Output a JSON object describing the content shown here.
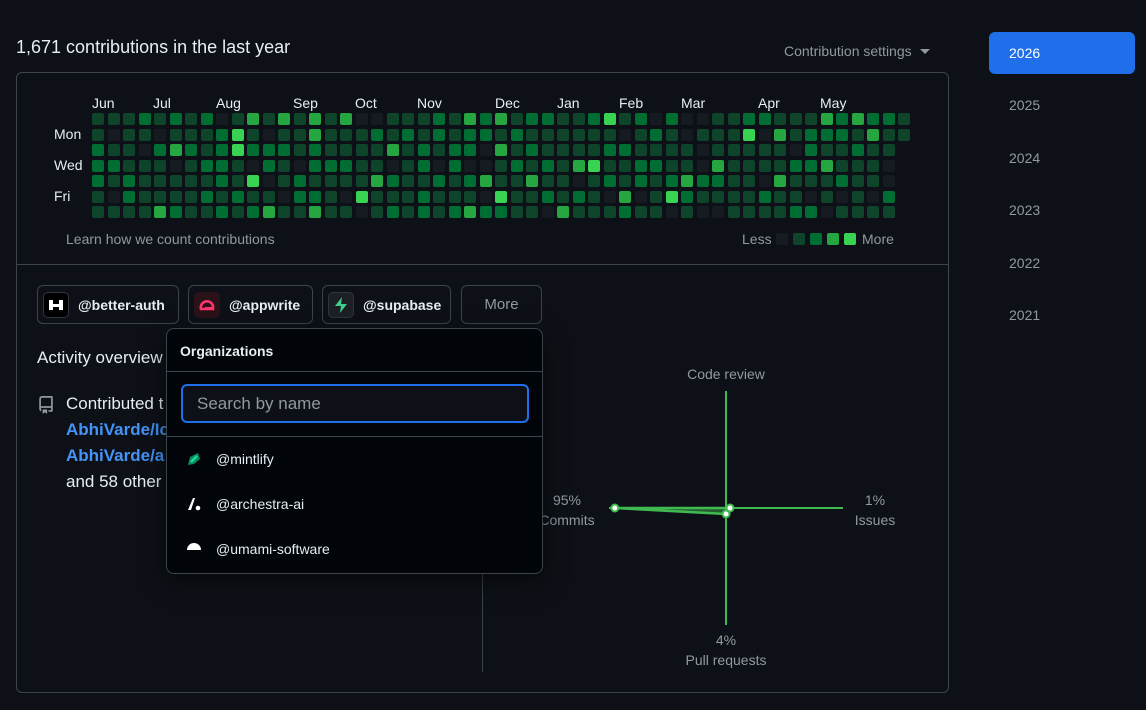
{
  "header": {
    "title": "1,671 contributions in the last year",
    "settings_label": "Contribution settings"
  },
  "calendar": {
    "months": [
      "Jun",
      "Jul",
      "Aug",
      "Sep",
      "Oct",
      "Nov",
      "Dec",
      "Jan",
      "Feb",
      "Mar",
      "Apr",
      "May"
    ],
    "day_labels": [
      "Mon",
      "Wed",
      "Fri"
    ],
    "learn_link": "Learn how we count contributions",
    "legend_less": "Less",
    "legend_more": "More",
    "levels": [
      "#161b22",
      "#0e4429",
      "#006d32",
      "#26a641",
      "#39d353"
    ]
  },
  "organizations": [
    {
      "handle": "@better-auth",
      "icon": "better-auth-logo"
    },
    {
      "handle": "@appwrite",
      "icon": "appwrite-logo"
    },
    {
      "handle": "@supabase",
      "icon": "supabase-logo"
    }
  ],
  "more_button": "More",
  "activity": {
    "title": "Activity overview",
    "contributed_prefix": "Contributed t",
    "repo_1": "AbhiVarde/Ic",
    "repo_2": "AbhiVarde/a",
    "others": "and 58 other"
  },
  "radar": {
    "top": {
      "label": "Code review",
      "percent": ""
    },
    "left": {
      "label": "Commits",
      "percent": "95%",
      "value": 95
    },
    "right": {
      "label": "Issues",
      "percent": "1%",
      "value": 1
    },
    "bottom": {
      "label": "Pull requests",
      "percent": "4%",
      "value": 4
    },
    "color": "#3fb950"
  },
  "years": [
    "2026",
    "2025",
    "2024",
    "2023",
    "2022",
    "2021"
  ],
  "active_year": "2026",
  "org_popup": {
    "title": "Organizations",
    "search_placeholder": "Search by name",
    "items": [
      {
        "handle": "@mintlify",
        "icon": "mintlify-logo"
      },
      {
        "handle": "@archestra-ai",
        "icon": "archestra-logo"
      },
      {
        "handle": "@umami-software",
        "icon": "umami-logo"
      }
    ]
  },
  "colors": {
    "accent": "#1f6feb",
    "link": "#4493f8",
    "border": "#3d444d",
    "background": "#0d1117"
  }
}
